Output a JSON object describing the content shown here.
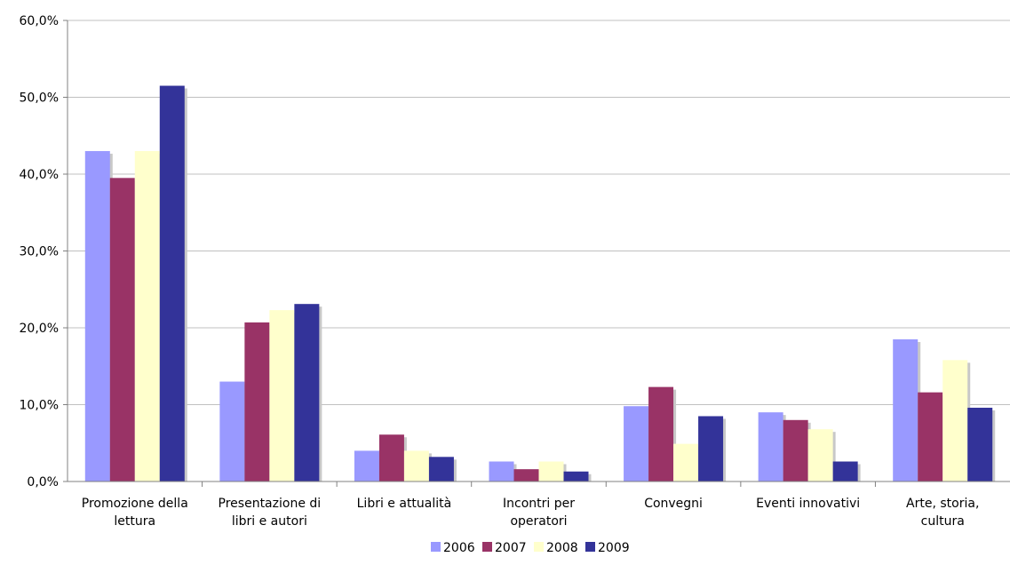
{
  "chart_data": {
    "type": "bar",
    "title": "",
    "xlabel": "",
    "ylabel": "",
    "ylim": [
      0,
      60
    ],
    "yticks": [
      "0,0%",
      "10,0%",
      "20,0%",
      "30,0%",
      "40,0%",
      "50,0%",
      "60,0%"
    ],
    "grid": true,
    "legend_position": "bottom",
    "categories": [
      [
        "Promozione della",
        "lettura"
      ],
      [
        "Presentazione di",
        "libri e autori"
      ],
      [
        "Libri e attualità"
      ],
      [
        "Incontri per",
        "operatori"
      ],
      [
        "Convegni"
      ],
      [
        "Eventi innovativi"
      ],
      [
        "Arte, storia,",
        "cultura"
      ]
    ],
    "series": [
      {
        "name": "2006",
        "color": "#9999ff",
        "values": [
          43.0,
          13.0,
          4.0,
          2.6,
          9.8,
          9.0,
          18.5
        ]
      },
      {
        "name": "2007",
        "color": "#993366",
        "values": [
          39.5,
          20.7,
          6.1,
          1.6,
          12.3,
          8.0,
          11.6
        ]
      },
      {
        "name": "2008",
        "color": "#ffffcc",
        "values": [
          43.0,
          22.3,
          4.0,
          2.6,
          4.9,
          6.8,
          15.8
        ]
      },
      {
        "name": "2009",
        "color": "#333399",
        "values": [
          51.5,
          23.1,
          3.2,
          1.3,
          8.5,
          2.6,
          9.6
        ]
      }
    ]
  }
}
